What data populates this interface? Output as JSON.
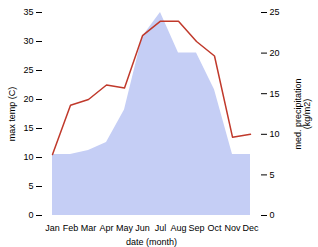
{
  "chart_data": {
    "type": "line",
    "xlabel": "date (month)",
    "ylabel": "max temp (C)",
    "y2label": "med. precipitation\n(kg/m2)",
    "categories": [
      "Jan",
      "Feb",
      "Mar",
      "Apr",
      "May",
      "Jun",
      "Jul",
      "Aug",
      "Sep",
      "Oct",
      "Nov",
      "Dec"
    ],
    "series": [
      {
        "type": "area",
        "axis": "y2",
        "color": "#c5cef5",
        "values": [
          7.5,
          7.5,
          8.0,
          9.0,
          13.0,
          22.0,
          25.0,
          20.0,
          20.0,
          15.5,
          7.5,
          7.5
        ]
      },
      {
        "type": "line",
        "color": "#c0392b",
        "values": [
          10.5,
          19.0,
          20.0,
          22.5,
          22.0,
          31.0,
          33.5,
          33.5,
          30.0,
          27.5,
          13.5,
          14.0
        ]
      }
    ],
    "ylim": [
      0,
      35
    ],
    "yticks": [
      0,
      5,
      10,
      15,
      20,
      25,
      30,
      35
    ],
    "y2lim": [
      0,
      25
    ],
    "y2ticks": [
      0,
      5,
      10,
      15,
      20,
      25
    ]
  }
}
